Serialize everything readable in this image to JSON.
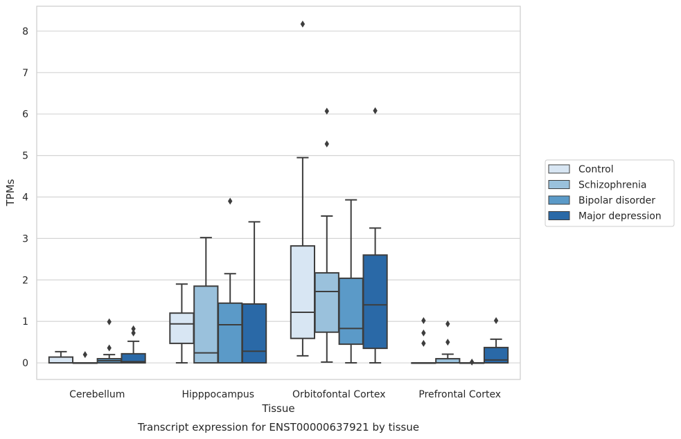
{
  "chart_data": {
    "type": "box",
    "categories": [
      "Cerebellum",
      "Hipppocampus",
      "Orbitofontal Cortex",
      "Prefrontal Cortex"
    ],
    "xlabel": "Tissue",
    "ylabel": "TPMs",
    "caption": "Transcript expression for ENST00000637921 by tissue",
    "ylim": [
      -0.4,
      8.6
    ],
    "yticks": [
      0,
      1,
      2,
      3,
      4,
      5,
      6,
      7,
      8
    ],
    "grid": "horizontal",
    "legend_position": "right",
    "series": [
      {
        "name": "Control",
        "color": "#d8e6f3",
        "boxes": [
          {
            "whislo": 0,
            "q1": 0,
            "med": 0,
            "q3": 0.14,
            "whishi": 0.27,
            "fliers": []
          },
          {
            "whislo": 0,
            "q1": 0.47,
            "med": 0.94,
            "q3": 1.2,
            "whishi": 1.9,
            "fliers": []
          },
          {
            "whislo": 0.17,
            "q1": 0.59,
            "med": 1.22,
            "q3": 2.82,
            "whishi": 4.95,
            "fliers": [
              8.17
            ]
          },
          {
            "whislo": 0,
            "q1": 0,
            "med": 0,
            "q3": 0,
            "whishi": 0,
            "fliers": [
              0.47,
              0.72,
              1.02
            ]
          }
        ]
      },
      {
        "name": "Schizophrenia",
        "color": "#9ac1dc",
        "boxes": [
          {
            "whislo": 0,
            "q1": 0,
            "med": 0,
            "q3": 0,
            "whishi": 0,
            "fliers": [
              0.2
            ]
          },
          {
            "whislo": 0,
            "q1": 0,
            "med": 0.24,
            "q3": 1.85,
            "whishi": 3.02,
            "fliers": []
          },
          {
            "whislo": 0.02,
            "q1": 0.74,
            "med": 1.72,
            "q3": 2.17,
            "whishi": 3.54,
            "fliers": [
              5.28,
              6.07
            ]
          },
          {
            "whislo": 0,
            "q1": 0,
            "med": 0,
            "q3": 0.1,
            "whishi": 0.21,
            "fliers": [
              0.5,
              0.94
            ]
          }
        ]
      },
      {
        "name": "Bipolar disorder",
        "color": "#5b9ac8",
        "boxes": [
          {
            "whislo": 0,
            "q1": 0,
            "med": 0.05,
            "q3": 0.1,
            "whishi": 0.2,
            "fliers": [
              0.36,
              0.99
            ]
          },
          {
            "whislo": 0,
            "q1": 0,
            "med": 0.92,
            "q3": 1.44,
            "whishi": 2.15,
            "fliers": [
              3.9
            ]
          },
          {
            "whislo": 0,
            "q1": 0.45,
            "med": 0.83,
            "q3": 2.04,
            "whishi": 3.93,
            "fliers": []
          },
          {
            "whislo": 0,
            "q1": 0,
            "med": 0,
            "q3": 0,
            "whishi": 0,
            "fliers": [
              0.02
            ]
          }
        ]
      },
      {
        "name": "Major depression",
        "color": "#2a69a7",
        "boxes": [
          {
            "whislo": 0,
            "q1": 0,
            "med": 0.03,
            "q3": 0.22,
            "whishi": 0.52,
            "fliers": [
              0.72,
              0.82
            ]
          },
          {
            "whislo": 0,
            "q1": 0,
            "med": 0.28,
            "q3": 1.42,
            "whishi": 3.4,
            "fliers": []
          },
          {
            "whislo": 0,
            "q1": 0.35,
            "med": 1.4,
            "q3": 2.6,
            "whishi": 3.25,
            "fliers": [
              6.08
            ]
          },
          {
            "whislo": 0,
            "q1": 0,
            "med": 0.07,
            "q3": 0.37,
            "whishi": 0.57,
            "fliers": [
              1.02
            ]
          }
        ]
      }
    ]
  }
}
